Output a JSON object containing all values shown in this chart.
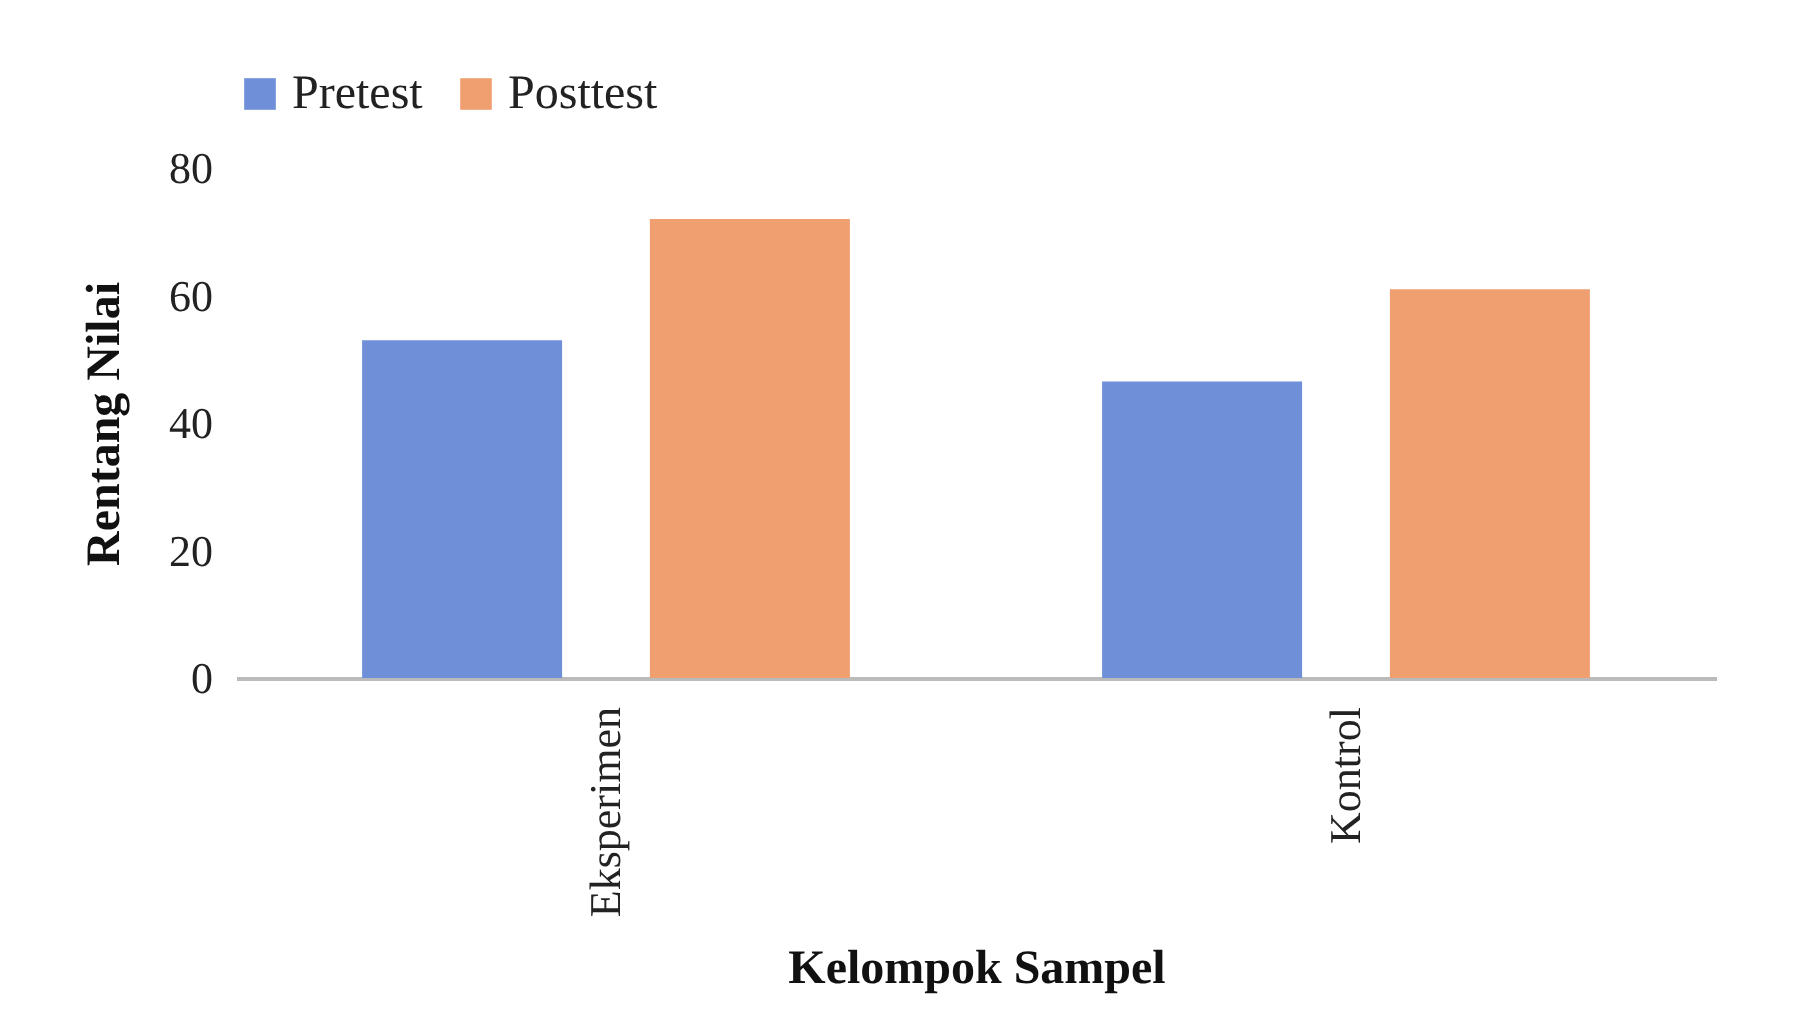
{
  "chart_data": {
    "type": "bar",
    "xlabel": "Kelompok Sampel",
    "ylabel": "Rentang Nilai",
    "categories": [
      "Eksperimen",
      "Kontrol"
    ],
    "series": [
      {
        "name": "Pretest",
        "color": "#6f8fd8",
        "values": [
          53,
          46.5
        ]
      },
      {
        "name": "Posttest",
        "color": "#f0a070",
        "values": [
          72,
          61
        ]
      }
    ],
    "ylim": [
      0,
      80
    ],
    "yticks": [
      0,
      20,
      40,
      60,
      80
    ],
    "grid": false,
    "legend": "top"
  }
}
